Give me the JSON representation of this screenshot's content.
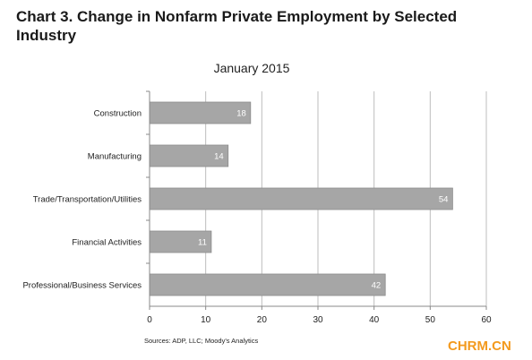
{
  "title": "Chart 3. Change in Nonfarm Private Employment by Selected Industry",
  "watermark": "CHRM.CN",
  "chart_data": {
    "type": "bar",
    "orientation": "horizontal",
    "title": "January 2015",
    "categories": [
      "Construction",
      "Manufacturing",
      "Trade/Transportation/Utilities",
      "Financial Activities",
      "Professional/Business Services"
    ],
    "values": [
      18,
      14,
      54,
      11,
      42
    ],
    "data_labels": [
      "18",
      "14",
      "54",
      "11",
      "42"
    ],
    "xlim": [
      0,
      60
    ],
    "xticks": [
      "0",
      "10",
      "20",
      "30",
      "40",
      "50",
      "60"
    ],
    "grid": true,
    "bar_color": "#a6a6a6",
    "source": "Sources: ADP, LLC; Moody's Analytics"
  }
}
